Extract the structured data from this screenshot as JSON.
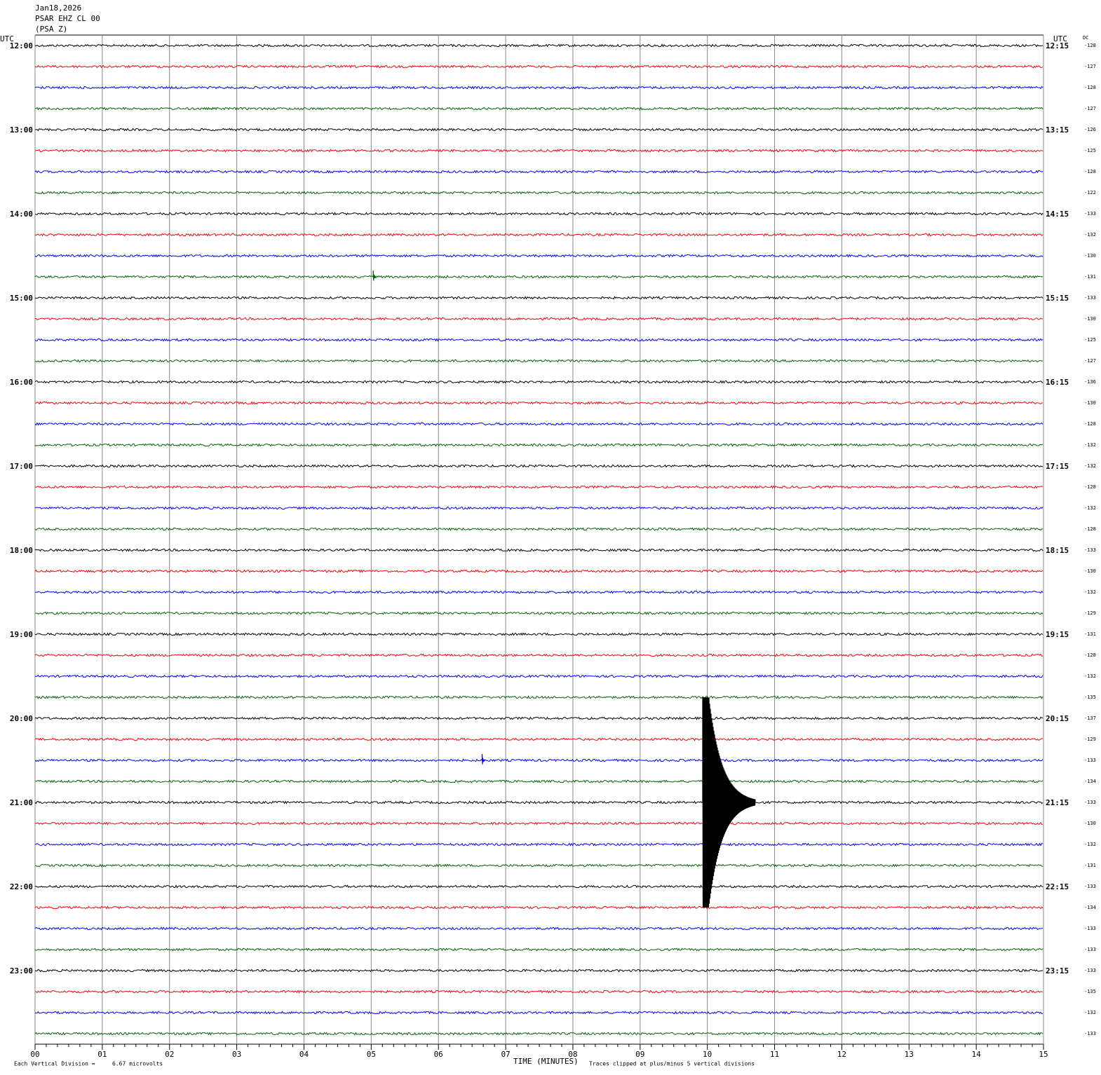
{
  "chart_data": {
    "type": "helicorder",
    "header": [
      "Jan18,2026",
      "PSAR EHZ CL 00",
      "(PSA Z)"
    ],
    "left_axis_title": "UTC",
    "right_axis_title": "UTC",
    "dc_title": "DC",
    "x_label": "TIME (MINUTES)",
    "scale_text": "Each Vertical Division =",
    "scale_value": "6.67 microvolts",
    "clip_text": "Traces clipped at plus/minus 5 vertical divisions",
    "left_labels": [
      "12:00",
      "13:00",
      "14:00",
      "15:00",
      "16:00",
      "17:00",
      "18:00",
      "19:00",
      "20:00",
      "21:00",
      "22:00",
      "23:00"
    ],
    "right_labels": [
      "12:15",
      "13:15",
      "14:15",
      "15:15",
      "16:15",
      "17:15",
      "18:15",
      "19:15",
      "20:15",
      "21:15",
      "22:15",
      "23:15"
    ],
    "traces_per_label": 4,
    "colors": [
      "#000000",
      "#ff0000",
      "#0000ff",
      "#006400"
    ],
    "dc_values": [
      -128,
      -127,
      -128,
      -127,
      -126,
      -125,
      -128,
      -122,
      -133,
      -132,
      -130,
      -131,
      -133,
      -130,
      -125,
      -127,
      -136,
      -130,
      -128,
      -132,
      -132,
      -128,
      -132,
      -128,
      -133,
      -130,
      -132,
      -129,
      -131,
      -128,
      -132,
      -135,
      -137,
      -129,
      -133,
      -134,
      -133,
      -130,
      -132,
      -131,
      -133,
      -134,
      -133,
      -133,
      -133,
      -135,
      -132,
      -133
    ],
    "xlim": [
      0,
      15
    ],
    "xticks": [
      {
        "value": 0,
        "label": "00"
      },
      {
        "value": 1,
        "label": "01"
      },
      {
        "value": 2,
        "label": "02"
      },
      {
        "value": 3,
        "label": "03"
      },
      {
        "value": 4,
        "label": "04"
      },
      {
        "value": 5,
        "label": "05"
      },
      {
        "value": 6,
        "label": "06"
      },
      {
        "value": 7,
        "label": "07"
      },
      {
        "value": 8,
        "label": "08"
      },
      {
        "value": 9,
        "label": "09"
      },
      {
        "value": 10,
        "label": "10"
      },
      {
        "value": 11,
        "label": "11"
      },
      {
        "value": 12,
        "label": "12"
      },
      {
        "value": 13,
        "label": "13"
      },
      {
        "value": 14,
        "label": "14"
      },
      {
        "value": 15,
        "label": "15"
      }
    ],
    "clip_divisions": 5,
    "events": [
      {
        "trace": 11,
        "minute": 5.03,
        "amplitude": 0.3
      },
      {
        "trace": 34,
        "minute": 6.65,
        "amplitude": 0.3
      },
      {
        "trace": 36,
        "minute": 9.93,
        "amplitude": 8
      }
    ]
  }
}
